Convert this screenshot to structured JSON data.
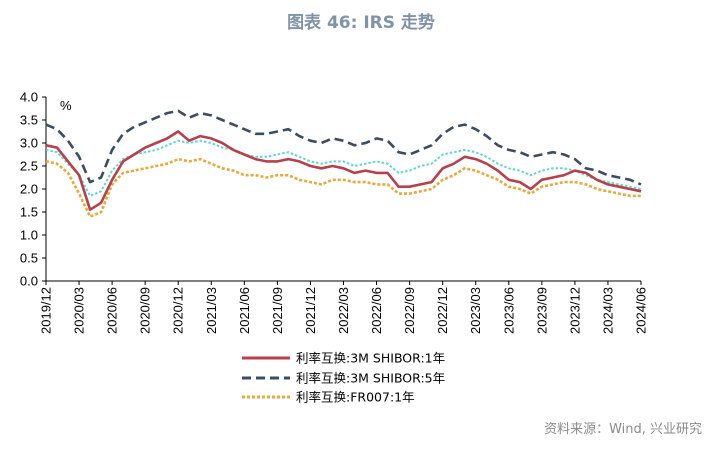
{
  "title": "图表 46: IRS 走势",
  "source": "资料来源：Wind, 兴业研究",
  "chart_data": {
    "type": "line",
    "ylabel": "%",
    "ylim": [
      0.0,
      4.0
    ],
    "yticks": [
      "4.0",
      "3.5",
      "3.0",
      "2.5",
      "2.0",
      "1.5",
      "1.0",
      "0.5",
      "0.0"
    ],
    "xticks": [
      "2019/12",
      "2020/03",
      "2020/06",
      "2020/09",
      "2020/12",
      "2021/03",
      "2021/06",
      "2021/09",
      "2021/12",
      "2022/03",
      "2022/06",
      "2022/09",
      "2022/12",
      "2023/03",
      "2023/06",
      "2023/09",
      "2023/12",
      "2024/03",
      "2024/06"
    ],
    "x": [
      "2019/12",
      "2020/01",
      "2020/02",
      "2020/03",
      "2020/04",
      "2020/05",
      "2020/06",
      "2020/07",
      "2020/08",
      "2020/09",
      "2020/10",
      "2020/11",
      "2020/12",
      "2021/01",
      "2021/02",
      "2021/03",
      "2021/04",
      "2021/05",
      "2021/06",
      "2021/07",
      "2021/08",
      "2021/09",
      "2021/10",
      "2021/11",
      "2021/12",
      "2022/01",
      "2022/02",
      "2022/03",
      "2022/04",
      "2022/05",
      "2022/06",
      "2022/07",
      "2022/08",
      "2022/09",
      "2022/10",
      "2022/11",
      "2022/12",
      "2023/01",
      "2023/02",
      "2023/03",
      "2023/04",
      "2023/05",
      "2023/06",
      "2023/07",
      "2023/08",
      "2023/09",
      "2023/10",
      "2023/11",
      "2023/12",
      "2024/01",
      "2024/02",
      "2024/03",
      "2024/04",
      "2024/05",
      "2024/06"
    ],
    "series": [
      {
        "name": "利率互换:3M SHIBOR:1年",
        "color": "#b8404a",
        "dash": "solid",
        "values": [
          2.95,
          2.9,
          2.6,
          2.3,
          1.55,
          1.7,
          2.2,
          2.6,
          2.75,
          2.9,
          3.0,
          3.1,
          3.25,
          3.05,
          3.15,
          3.1,
          3.0,
          2.85,
          2.75,
          2.65,
          2.6,
          2.6,
          2.65,
          2.6,
          2.5,
          2.45,
          2.5,
          2.45,
          2.35,
          2.4,
          2.35,
          2.35,
          2.05,
          2.05,
          2.1,
          2.15,
          2.45,
          2.55,
          2.7,
          2.65,
          2.55,
          2.4,
          2.2,
          2.15,
          2.0,
          2.2,
          2.25,
          2.3,
          2.4,
          2.35,
          2.2,
          2.1,
          2.05,
          2.0,
          1.95
        ]
      },
      {
        "name": "利率互换:3M SHIBOR:5年",
        "color": "#3c4d63",
        "dash": "dashed",
        "values": [
          3.4,
          3.3,
          3.05,
          2.7,
          2.15,
          2.25,
          2.85,
          3.2,
          3.35,
          3.45,
          3.55,
          3.65,
          3.7,
          3.55,
          3.65,
          3.6,
          3.5,
          3.4,
          3.3,
          3.2,
          3.2,
          3.25,
          3.3,
          3.15,
          3.05,
          3.0,
          3.1,
          3.05,
          2.95,
          3.0,
          3.1,
          3.05,
          2.8,
          2.75,
          2.85,
          2.95,
          3.2,
          3.35,
          3.4,
          3.3,
          3.15,
          2.95,
          2.85,
          2.8,
          2.7,
          2.75,
          2.8,
          2.75,
          2.65,
          2.45,
          2.4,
          2.3,
          2.25,
          2.2,
          2.1
        ]
      },
      {
        "name": "利率互换:FR007:1年",
        "color": "#e8a93a",
        "dash": "dotted",
        "values": [
          2.6,
          2.55,
          2.35,
          1.9,
          1.4,
          1.5,
          2.1,
          2.35,
          2.4,
          2.45,
          2.5,
          2.55,
          2.65,
          2.6,
          2.65,
          2.55,
          2.45,
          2.4,
          2.3,
          2.3,
          2.25,
          2.3,
          2.3,
          2.2,
          2.15,
          2.1,
          2.2,
          2.2,
          2.15,
          2.15,
          2.1,
          2.1,
          1.9,
          1.9,
          1.95,
          2.0,
          2.2,
          2.3,
          2.45,
          2.4,
          2.3,
          2.2,
          2.05,
          2.0,
          1.9,
          2.05,
          2.1,
          2.15,
          2.15,
          2.1,
          2.0,
          1.95,
          1.9,
          1.85,
          1.85
        ]
      }
    ],
    "overlay": {
      "name": "",
      "color": "#5fd6d6",
      "values": [
        2.85,
        2.8,
        2.55,
        2.3,
        1.85,
        1.95,
        2.4,
        2.65,
        2.75,
        2.8,
        2.85,
        2.95,
        3.05,
        3.0,
        3.05,
        3.0,
        2.9,
        2.85,
        2.75,
        2.7,
        2.7,
        2.75,
        2.8,
        2.7,
        2.6,
        2.55,
        2.6,
        2.6,
        2.5,
        2.55,
        2.6,
        2.55,
        2.35,
        2.4,
        2.5,
        2.55,
        2.75,
        2.8,
        2.85,
        2.8,
        2.7,
        2.55,
        2.45,
        2.4,
        2.3,
        2.4,
        2.45,
        2.45,
        2.4,
        2.3,
        2.2,
        2.15,
        2.1,
        2.05,
        2.0
      ]
    },
    "legend_position": "bottom",
    "grid": false
  }
}
